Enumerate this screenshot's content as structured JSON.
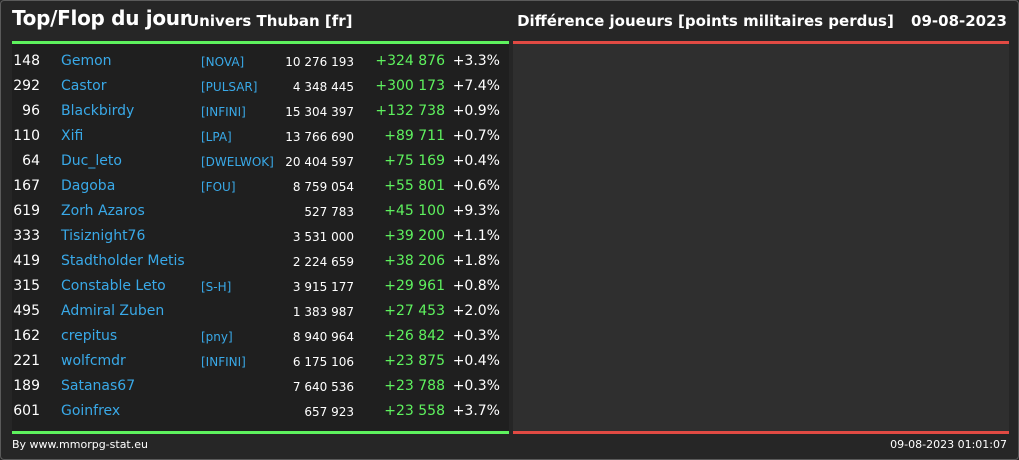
{
  "header": {
    "title": "Top/Flop du jour",
    "universe": "Univers Thuban [fr]",
    "subtitle": "Différence joueurs [points militaires perdus]",
    "date": "09-08-2023"
  },
  "colors": {
    "gain": "#5ef25e",
    "loss": "#e14a43",
    "link": "#39a9e8"
  },
  "rows": [
    {
      "rank": "148",
      "name": "Gemon",
      "alliance": "[NOVA]",
      "points": "10 276 193",
      "diff": "+324 876",
      "pct": "+3.3%"
    },
    {
      "rank": "292",
      "name": "Castor",
      "alliance": "[PULSAR]",
      "points": "4 348 445",
      "diff": "+300 173",
      "pct": "+7.4%"
    },
    {
      "rank": "96",
      "name": "Blackbirdy",
      "alliance": "[INFINI]",
      "points": "15 304 397",
      "diff": "+132 738",
      "pct": "+0.9%"
    },
    {
      "rank": "110",
      "name": "Xifi",
      "alliance": "[LPA]",
      "points": "13 766 690",
      "diff": "+89 711",
      "pct": "+0.7%"
    },
    {
      "rank": "64",
      "name": "Duc_leto",
      "alliance": "[DWELWOK]",
      "points": "20 404 597",
      "diff": "+75 169",
      "pct": "+0.4%"
    },
    {
      "rank": "167",
      "name": "Dagoba",
      "alliance": "[FOU]",
      "points": "8 759 054",
      "diff": "+55 801",
      "pct": "+0.6%"
    },
    {
      "rank": "619",
      "name": "Zorh Azaros",
      "alliance": "",
      "points": "527 783",
      "diff": "+45 100",
      "pct": "+9.3%"
    },
    {
      "rank": "333",
      "name": "Tisiznight76",
      "alliance": "",
      "points": "3 531 000",
      "diff": "+39 200",
      "pct": "+1.1%"
    },
    {
      "rank": "419",
      "name": "Stadtholder Metis",
      "alliance": "",
      "points": "2 224 659",
      "diff": "+38 206",
      "pct": "+1.8%"
    },
    {
      "rank": "315",
      "name": "Constable Leto",
      "alliance": "[S-H]",
      "points": "3 915 177",
      "diff": "+29 961",
      "pct": "+0.8%"
    },
    {
      "rank": "495",
      "name": "Admiral Zuben",
      "alliance": "",
      "points": "1 383 987",
      "diff": "+27 453",
      "pct": "+2.0%"
    },
    {
      "rank": "162",
      "name": "crepitus",
      "alliance": "[pny]",
      "points": "8 940 964",
      "diff": "+26 842",
      "pct": "+0.3%"
    },
    {
      "rank": "221",
      "name": "wolfcmdr",
      "alliance": "[INFINI]",
      "points": "6 175 106",
      "diff": "+23 875",
      "pct": "+0.4%"
    },
    {
      "rank": "189",
      "name": "Satanas67",
      "alliance": "",
      "points": "7 640 536",
      "diff": "+23 788",
      "pct": "+0.3%"
    },
    {
      "rank": "601",
      "name": "Goinfrex",
      "alliance": "",
      "points": "657 923",
      "diff": "+23 558",
      "pct": "+3.7%"
    }
  ],
  "footer": {
    "source": "By www.mmorpg-stat.eu",
    "timestamp": "09-08-2023 01:01:07"
  }
}
